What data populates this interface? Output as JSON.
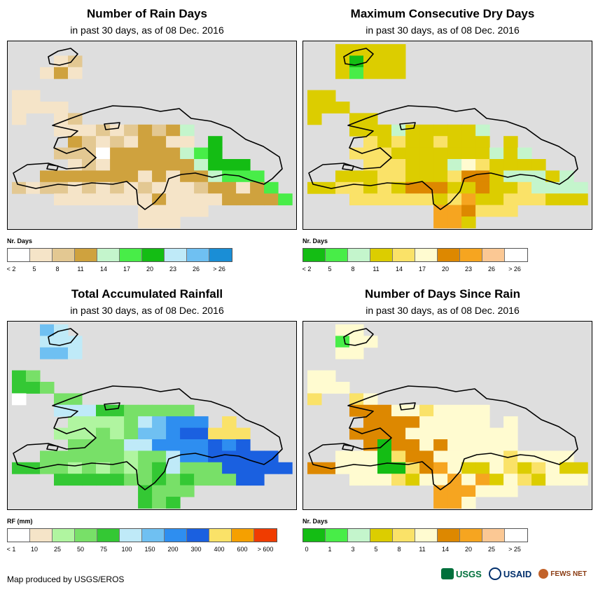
{
  "panels": [
    {
      "title": "Number of Rain Days",
      "subtitle": "in past 30 days, as of 08 Dec. 2016",
      "legend_title": "Nr. Days",
      "colors": [
        "#ffffff",
        "#f5e4c8",
        "#e3c892",
        "#cfa23e",
        "#c4f5cc",
        "#48ed48",
        "#14bd14",
        "#bfeaf8",
        "#6fc0f2",
        "#1a8ed6"
      ],
      "ticks": [
        "< 2",
        "5",
        "8",
        "11",
        "14",
        "17",
        "20",
        "23",
        "26",
        "> 26"
      ],
      "grid": [
        ".................",
        "...12............",
        "..131............",
        ".................",
        "11...............",
        "1111.............",
        "1..12...........",
        "...1112123234...",
        "....321213311.6.",
        "...222033333456.",
        "....1213333334666",
        "..3333333131334555",
        "2122121212111233135",
        "...11111113111133335",
        ".........11111......",
        ".........111........"
      ]
    },
    {
      "title": "Maximum Consecutive Dry Days",
      "subtitle": "in past 30 days, as of 08 Dec. 2016",
      "legend_title": "Nr. Days",
      "colors": [
        "#14bd14",
        "#48ed48",
        "#c4f5cc",
        "#dccd00",
        "#fae268",
        "#fffbd0",
        "#dd8800",
        "#f6a520",
        "#fbc894",
        "#ffffff"
      ],
      "ticks": [
        "< 2",
        "5",
        "8",
        "11",
        "14",
        "17",
        "20",
        "23",
        "26",
        "> 26"
      ],
      "grid": [
        "..33333..........",
        "..30333..........",
        "..31333..........",
        ".................",
        "33...............",
        "333..............",
        "3..33...........",
        "...3332333332...",
        "....434334333.3.",
        "...4443333333232",
        "....4443332543333",
        "..33344333466322232",
        "33443436663363342222",
        "...44444434733444333",
        ".........776444......",
        ".........773........."
      ]
    },
    {
      "title": "Total Accumulated Rainfall",
      "subtitle": "in past 30 days, as of 08 Dec. 2016",
      "legend_title": "RF (mm)",
      "colors": [
        "#ffffff",
        "#f5e4c8",
        "#b0f5a0",
        "#78e068",
        "#34c834",
        "#bfeaf8",
        "#6fc0f2",
        "#2e8ef0",
        "#1a60e0",
        "#fae268",
        "#f5a000",
        "#f03c00"
      ],
      "ticks": [
        "< 1",
        "10",
        "25",
        "50",
        "75",
        "100",
        "150",
        "200",
        "300",
        "400",
        "600",
        "> 600"
      ],
      "grid": [
        "..65.............",
        "..555............",
        "..665............",
        ".................",
        "43...............",
        "443..............",
        "0..33...........",
        "...5554433333...",
        "....2222356777.9",
        "...22232366788999",
        "....3333557777878",
        "..33333323357788888",
        "44332323234533388888",
        "...444443343433388",
        ".........4333.......",
        ".........434........"
      ]
    },
    {
      "title": "Number of Days Since Rain",
      "subtitle": "in past 30 days, as of 08 Dec. 2016",
      "legend_title": "Nr. Days",
      "colors": [
        "#14bd14",
        "#48ed48",
        "#c4f5cc",
        "#dccd00",
        "#fae268",
        "#fffbd0",
        "#dd8800",
        "#f6a520",
        "#fbc894",
        "#ffffff"
      ],
      "ticks": [
        "0",
        "1",
        "3",
        "5",
        "8",
        "11",
        "14",
        "20",
        "25",
        "> 25"
      ],
      "grid": [
        "..55.............",
        "..155............",
        "..55.............",
        ".................",
        "55...............",
        "555..............",
        "4..45...........",
        "...6665545555...",
        "....666655555.5.",
        "...666655555555",
        "....60665655555.",
        "..55504665555545555",
        "66555004675335434533",
        "...55543557573543555",
        ".........777555......",
        ".........775........."
      ]
    }
  ],
  "credit": "Map produced by USGS/EROS",
  "logos": [
    "USGS",
    "USAID",
    "FEWS NET"
  ]
}
